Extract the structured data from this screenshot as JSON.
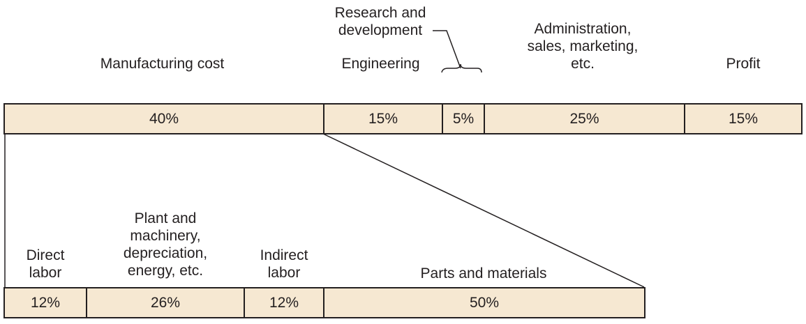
{
  "top_labels": {
    "manufacturing": "Manufacturing cost",
    "engineering": "Engineering",
    "research": "Research and\ndevelopment",
    "administration": "Administration,\nsales, marketing,\netc.",
    "profit": "Profit"
  },
  "top_bar": {
    "manufacturing": "40%",
    "engineering": "15%",
    "research": "5%",
    "administration": "25%",
    "profit": "15%"
  },
  "bottom_labels": {
    "direct_labor": "Direct\nlabor",
    "plant": "Plant and\nmachinery,\ndepreciation,\nenergy, etc.",
    "indirect_labor": "Indirect\nlabor",
    "parts": "Parts and materials"
  },
  "bottom_bar": {
    "direct_labor": "12%",
    "plant": "26%",
    "indirect_labor": "12%",
    "parts": "50%"
  },
  "colors": {
    "bar_fill": "#f6e8d2",
    "stroke": "#231f20"
  }
}
